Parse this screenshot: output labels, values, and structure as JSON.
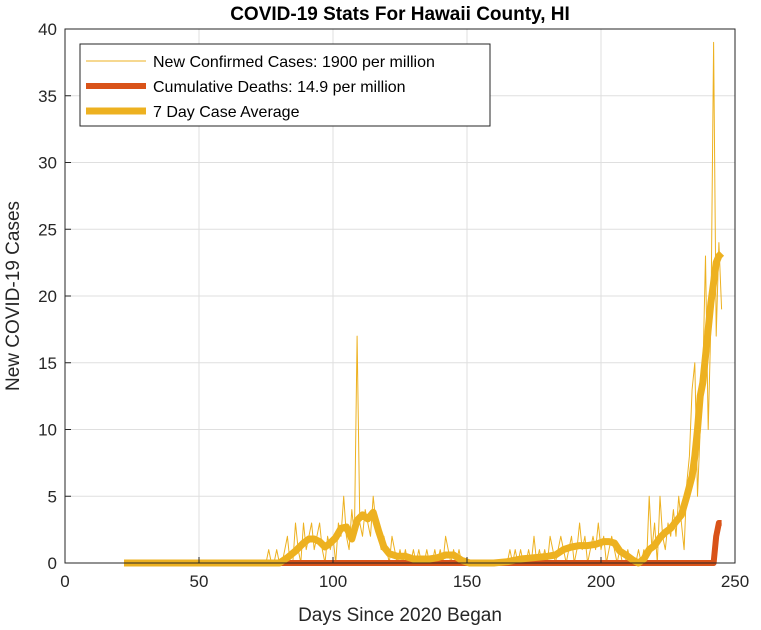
{
  "chart_data": {
    "type": "line",
    "title": "COVID-19 Stats For Hawaii County, HI",
    "xlabel": "Days Since 2020 Began",
    "ylabel": "New COVID-19 Cases",
    "xlim": [
      0,
      250
    ],
    "ylim": [
      0,
      40
    ],
    "xticks": [
      0,
      50,
      100,
      150,
      200,
      250
    ],
    "yticks": [
      0,
      5,
      10,
      15,
      20,
      25,
      30,
      35,
      40
    ],
    "grid": true,
    "legend_position": "top-left",
    "series": [
      {
        "name": "New Confirmed Cases: 1900 per million",
        "color": "#EDB120",
        "style": "thin",
        "x": [
          22,
          75,
          76,
          77,
          78,
          79,
          80,
          81,
          82,
          83,
          84,
          85,
          86,
          87,
          88,
          89,
          90,
          91,
          92,
          93,
          94,
          95,
          96,
          97,
          98,
          99,
          100,
          101,
          102,
          103,
          104,
          105,
          106,
          107,
          108,
          109,
          110,
          111,
          112,
          113,
          114,
          115,
          116,
          117,
          118,
          119,
          120,
          121,
          122,
          123,
          124,
          125,
          126,
          127,
          128,
          129,
          130,
          131,
          132,
          133,
          134,
          135,
          136,
          137,
          138,
          139,
          140,
          141,
          142,
          143,
          144,
          145,
          146,
          147,
          148,
          149,
          150,
          165,
          166,
          167,
          168,
          169,
          170,
          171,
          172,
          173,
          174,
          175,
          176,
          177,
          178,
          179,
          180,
          181,
          182,
          183,
          184,
          185,
          186,
          187,
          188,
          189,
          190,
          191,
          192,
          193,
          194,
          195,
          196,
          197,
          198,
          199,
          200,
          201,
          202,
          203,
          204,
          205,
          206,
          207,
          208,
          209,
          210,
          211,
          212,
          213,
          214,
          215,
          216,
          217,
          218,
          219,
          220,
          221,
          222,
          223,
          224,
          225,
          226,
          227,
          228,
          229,
          230,
          231,
          232,
          233,
          234,
          235,
          236,
          237,
          238,
          239,
          240,
          241,
          242,
          243,
          244,
          245
        ],
        "values": [
          0,
          0,
          1,
          0,
          0,
          1,
          0,
          0,
          1,
          2,
          0,
          0,
          3,
          1,
          0,
          3,
          1,
          2,
          3,
          1,
          2,
          3,
          1,
          0,
          2,
          1,
          2,
          0,
          3,
          2,
          5,
          2,
          1,
          4,
          2,
          17,
          3,
          2,
          4,
          3,
          2,
          5,
          3,
          2,
          1,
          2,
          1,
          0,
          2,
          1,
          0,
          1,
          0,
          1,
          0,
          0,
          1,
          0,
          1,
          0,
          0,
          1,
          0,
          0,
          1,
          0,
          1,
          0,
          2,
          1,
          0,
          1,
          0,
          1,
          0,
          0,
          0,
          0,
          1,
          0,
          1,
          0,
          1,
          0,
          0,
          1,
          0,
          2,
          0,
          1,
          0,
          1,
          0,
          2,
          1,
          0,
          1,
          2,
          1,
          0,
          1,
          2,
          0,
          1,
          3,
          1,
          2,
          0,
          1,
          2,
          1,
          3,
          1,
          2,
          0,
          1,
          2,
          1,
          0,
          1,
          0,
          0,
          1,
          0,
          0,
          0,
          1,
          0,
          1,
          0,
          5,
          1,
          3,
          0,
          5,
          2,
          1,
          3,
          2,
          4,
          2,
          5,
          3,
          1,
          6,
          8,
          13,
          15,
          5,
          10,
          14,
          23,
          10,
          18,
          39,
          17,
          24,
          19
        ]
      },
      {
        "name": "Cumulative Deaths: 14.9 per million",
        "color": "#D95319",
        "style": "medium",
        "x": [
          22,
          100,
          105,
          110,
          115,
          120,
          200,
          210,
          220,
          240,
          241,
          242,
          243,
          244,
          245
        ],
        "values": [
          0,
          0,
          0,
          0,
          0,
          0,
          0,
          0,
          0,
          0,
          0,
          0,
          2,
          3,
          3
        ]
      },
      {
        "name": "7 Day Case Average",
        "color": "#EDB120",
        "style": "thick",
        "x": [
          22,
          80,
          83,
          86,
          89,
          91,
          93,
          95,
          97,
          99,
          101,
          103,
          105,
          107,
          109,
          111,
          113,
          115,
          117,
          119,
          121,
          124,
          127,
          130,
          133,
          136,
          139,
          142,
          145,
          148,
          151,
          160,
          165,
          170,
          175,
          180,
          183,
          186,
          189,
          192,
          195,
          198,
          201,
          203,
          205,
          207,
          210,
          212,
          214,
          216,
          218,
          220,
          222,
          224,
          226,
          228,
          230,
          232,
          234,
          235,
          236,
          237,
          238,
          239,
          240,
          241,
          242,
          243,
          244,
          245
        ],
        "values": [
          0,
          0,
          0.4,
          0.9,
          1.5,
          1.8,
          1.8,
          1.6,
          1.2,
          1.5,
          1.9,
          2.6,
          2.7,
          1.8,
          3.2,
          3.6,
          3.3,
          3.8,
          2.4,
          1.2,
          0.7,
          0.5,
          0.5,
          0.3,
          0.3,
          0.3,
          0.4,
          0.6,
          0.6,
          0.2,
          0,
          0,
          0.1,
          0.3,
          0.4,
          0.5,
          0.6,
          1,
          1.2,
          1.3,
          1.3,
          1.4,
          1.6,
          1.6,
          1.5,
          0.9,
          0.5,
          0.2,
          0,
          0.3,
          1,
          1.3,
          1.9,
          2.3,
          2.6,
          3.1,
          3.6,
          5,
          6.5,
          8,
          10,
          12.5,
          13.5,
          15.5,
          17.5,
          19.5,
          21,
          22.5,
          23,
          23.2
        ]
      }
    ]
  }
}
